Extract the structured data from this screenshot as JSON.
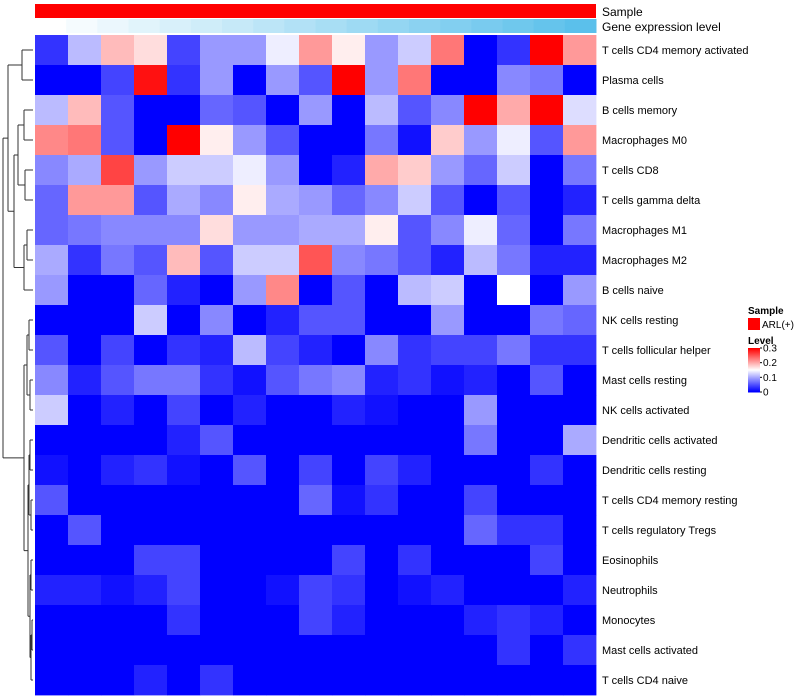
{
  "chart_data": {
    "type": "heatmap",
    "annotation_rows": [
      "Sample",
      "Gene expression level"
    ],
    "annotation_colors": {
      "sample": "#ff0000",
      "expression_low": "#ffffff",
      "expression_high": "#5bc0eb"
    },
    "gene_expression_level": [
      0.0,
      0.06,
      0.12,
      0.18,
      0.24,
      0.29,
      0.35,
      0.41,
      0.47,
      0.53,
      0.59,
      0.65,
      0.71,
      0.76,
      0.82,
      0.88,
      0.94,
      1.0
    ],
    "rows": [
      "T cells CD4 memory activated",
      "Plasma cells",
      "B cells memory",
      "Macrophages M0",
      "T cells CD8",
      "T cells gamma delta",
      "Macrophages M1",
      "Macrophages M2",
      "B cells naive",
      "NK cells resting",
      "T cells follicular helper",
      "Mast cells resting",
      "NK cells activated",
      "Dendritic cells activated",
      "Dendritic cells resting",
      "T cells CD4 memory resting",
      "T cells regulatory  Tregs",
      "Eosinophils",
      "Neutrophils",
      "Monocytes",
      "Mast cells activated",
      "T cells CD4 naive"
    ],
    "values": [
      [
        0.03,
        0.11,
        0.19,
        0.17,
        0.04,
        0.09,
        0.09,
        0.14,
        0.21,
        0.16,
        0.09,
        0.12,
        0.23,
        0.0,
        0.03,
        0.3,
        0.21
      ],
      [
        0.0,
        0.0,
        0.04,
        0.29,
        0.03,
        0.09,
        0.0,
        0.09,
        0.05,
        0.3,
        0.09,
        0.23,
        0.0,
        0.0,
        0.08,
        0.07,
        0.0
      ],
      [
        0.11,
        0.19,
        0.05,
        0.0,
        0.0,
        0.06,
        0.05,
        0.0,
        0.09,
        0.0,
        0.11,
        0.05,
        0.08,
        0.3,
        0.2,
        0.3,
        0.13
      ],
      [
        0.22,
        0.23,
        0.05,
        0.0,
        0.3,
        0.16,
        0.09,
        0.05,
        0.0,
        0.0,
        0.07,
        0.01,
        0.18,
        0.09,
        0.14,
        0.05,
        0.21
      ],
      [
        0.08,
        0.1,
        0.26,
        0.09,
        0.12,
        0.12,
        0.14,
        0.09,
        0.0,
        0.02,
        0.2,
        0.18,
        0.09,
        0.06,
        0.12,
        0.0,
        0.07
      ],
      [
        0.06,
        0.21,
        0.21,
        0.05,
        0.1,
        0.08,
        0.16,
        0.1,
        0.09,
        0.06,
        0.08,
        0.12,
        0.05,
        0.0,
        0.05,
        0.0,
        0.02
      ],
      [
        0.06,
        0.07,
        0.08,
        0.08,
        0.08,
        0.17,
        0.09,
        0.09,
        0.1,
        0.1,
        0.16,
        0.05,
        0.08,
        0.14,
        0.06,
        0.0,
        0.07
      ],
      [
        0.1,
        0.03,
        0.07,
        0.05,
        0.19,
        0.05,
        0.12,
        0.12,
        0.25,
        0.08,
        0.07,
        0.05,
        0.02,
        0.11,
        0.07,
        0.02,
        0.02
      ],
      [
        0.09,
        0.0,
        0.0,
        0.06,
        0.02,
        0.0,
        0.09,
        0.22,
        0.0,
        0.05,
        0.0,
        0.11,
        0.12,
        0.0,
        0.15,
        0.0,
        0.09
      ],
      [
        0.0,
        0.0,
        0.0,
        0.12,
        0.0,
        0.08,
        0.0,
        0.02,
        0.05,
        0.05,
        0.0,
        0.0,
        0.09,
        0.0,
        0.0,
        0.07,
        0.06
      ],
      [
        0.05,
        0.0,
        0.04,
        0.0,
        0.03,
        0.02,
        0.11,
        0.04,
        0.02,
        0.0,
        0.08,
        0.03,
        0.04,
        0.04,
        0.07,
        0.03,
        0.03
      ],
      [
        0.08,
        0.02,
        0.05,
        0.07,
        0.07,
        0.03,
        0.01,
        0.05,
        0.07,
        0.08,
        0.02,
        0.03,
        0.01,
        0.02,
        0.0,
        0.05,
        0.0
      ],
      [
        0.12,
        0.0,
        0.02,
        0.0,
        0.04,
        0.0,
        0.02,
        0.0,
        0.0,
        0.02,
        0.01,
        0.0,
        0.0,
        0.09,
        0.0,
        0.0,
        0.0
      ],
      [
        0.0,
        0.0,
        0.0,
        0.0,
        0.02,
        0.05,
        0.0,
        0.0,
        0.0,
        0.0,
        0.0,
        0.0,
        0.0,
        0.07,
        0.0,
        0.0,
        0.1
      ],
      [
        0.01,
        0.0,
        0.02,
        0.03,
        0.01,
        0.0,
        0.05,
        0.0,
        0.04,
        0.0,
        0.04,
        0.02,
        0.0,
        0.0,
        0.0,
        0.03,
        0.0
      ],
      [
        0.05,
        0.0,
        0.0,
        0.0,
        0.0,
        0.0,
        0.0,
        0.0,
        0.06,
        0.01,
        0.03,
        0.0,
        0.0,
        0.04,
        0.0,
        0.0,
        0.0
      ],
      [
        0.0,
        0.05,
        0.0,
        0.0,
        0.0,
        0.0,
        0.0,
        0.0,
        0.0,
        0.0,
        0.0,
        0.0,
        0.0,
        0.06,
        0.03,
        0.03,
        0.0
      ],
      [
        0.0,
        0.0,
        0.0,
        0.04,
        0.04,
        0.0,
        0.0,
        0.0,
        0.0,
        0.04,
        0.0,
        0.03,
        0.0,
        0.0,
        0.0,
        0.04,
        0.0
      ],
      [
        0.02,
        0.02,
        0.01,
        0.02,
        0.04,
        0.0,
        0.0,
        0.01,
        0.04,
        0.03,
        0.0,
        0.01,
        0.02,
        0.0,
        0.0,
        0.0,
        0.02
      ],
      [
        0.0,
        0.0,
        0.0,
        0.0,
        0.03,
        0.0,
        0.0,
        0.0,
        0.04,
        0.02,
        0.0,
        0.0,
        0.0,
        0.02,
        0.03,
        0.02,
        0.0
      ],
      [
        0.0,
        0.0,
        0.0,
        0.0,
        0.0,
        0.0,
        0.0,
        0.0,
        0.0,
        0.0,
        0.0,
        0.0,
        0.0,
        0.0,
        0.03,
        0.0,
        0.03
      ],
      [
        0.0,
        0.0,
        0.0,
        0.02,
        0.0,
        0.03,
        0.0,
        0.0,
        0.0,
        0.0,
        0.0,
        0.0,
        0.0,
        0.0,
        0.0,
        0.0,
        0.0
      ]
    ],
    "color_scale": {
      "low": "#0000ff",
      "mid": "#ffffff",
      "high": "#ff0000",
      "min": 0,
      "mid_value": 0.15,
      "max": 0.3
    },
    "legend": {
      "sample_title": "Sample",
      "sample_entry": "ARL(+)",
      "level_title": "Level",
      "level_ticks": [
        {
          "value": 0.3,
          "label": "0.3"
        },
        {
          "value": 0.2,
          "label": "0.2"
        },
        {
          "value": 0.1,
          "label": "0.1"
        },
        {
          "value": 0.0,
          "label": "0"
        }
      ],
      "placement": "right"
    },
    "row_dendrogram": true
  }
}
